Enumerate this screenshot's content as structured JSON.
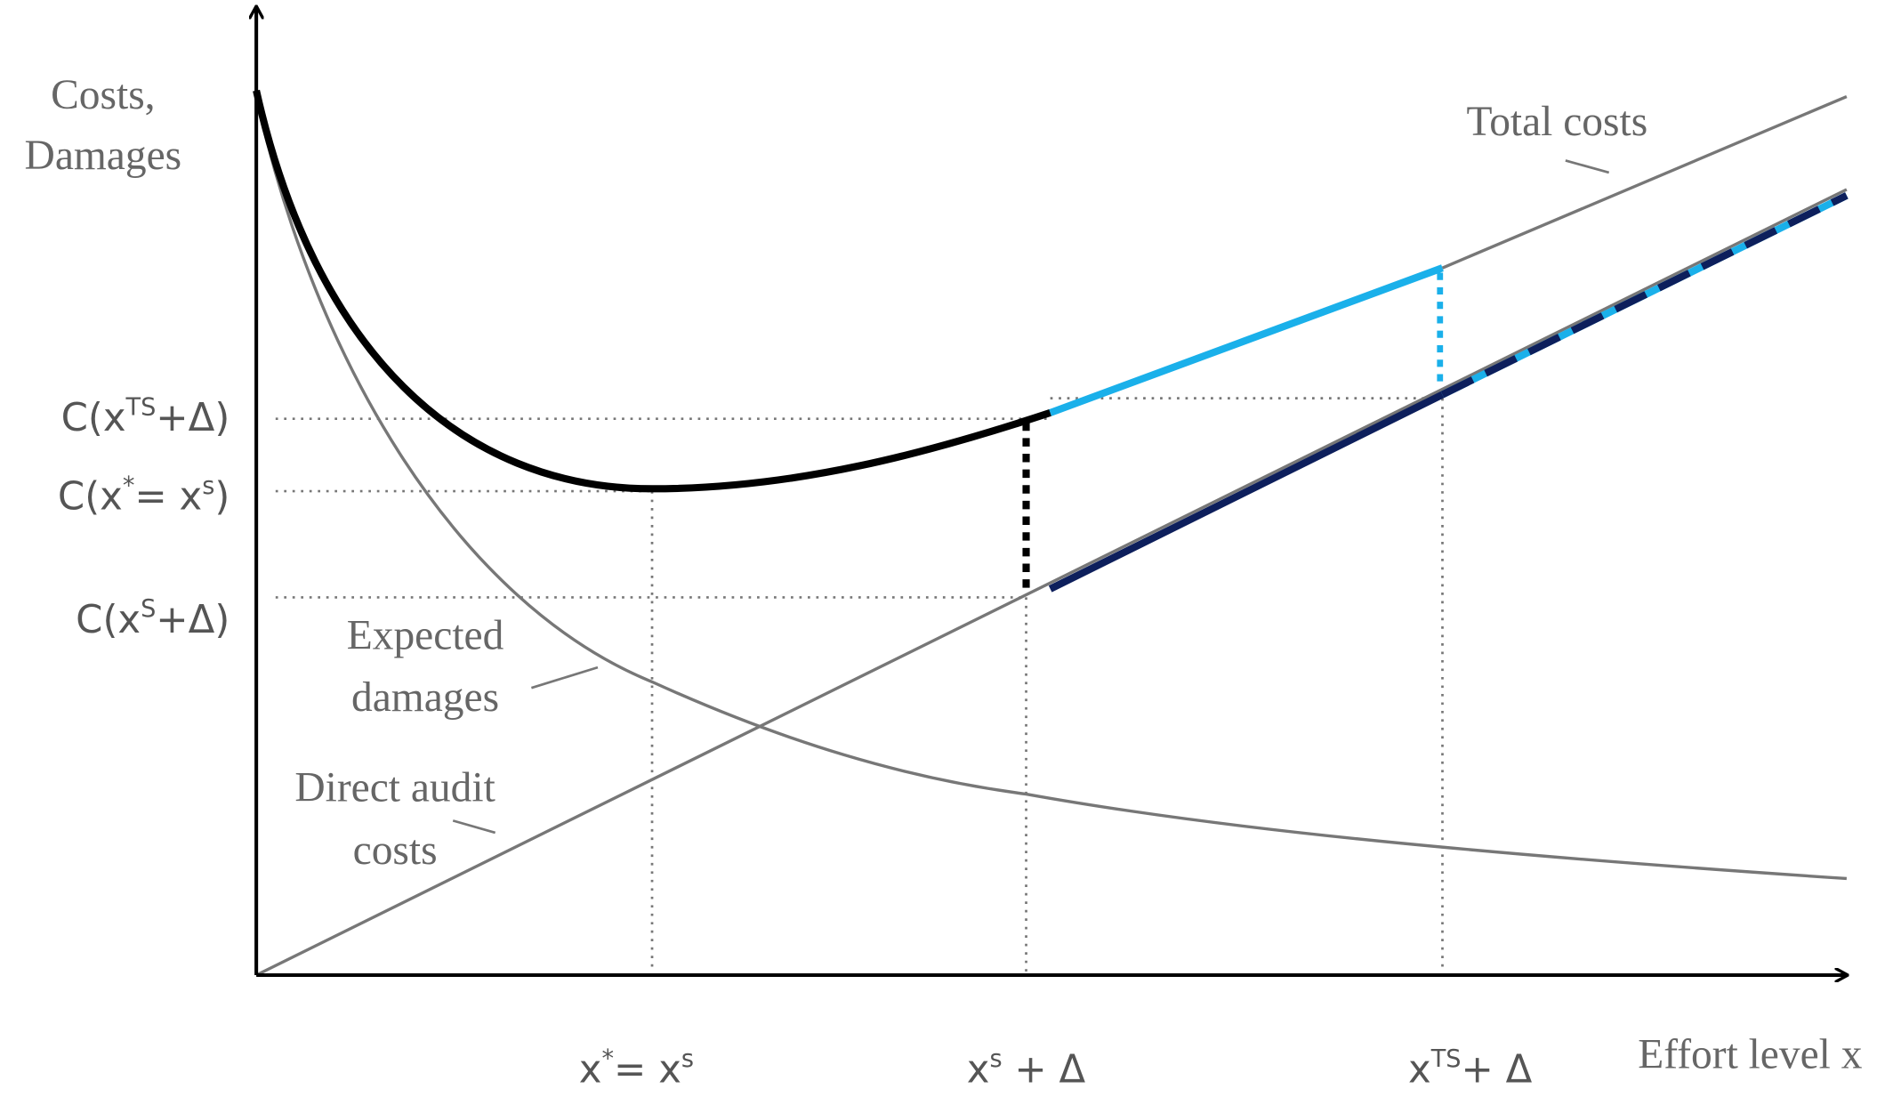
{
  "axes": {
    "y_label": [
      "Costs,",
      "Damages"
    ],
    "x_label": "Effort level x"
  },
  "curve_labels": {
    "total_costs": "Total costs",
    "expected_damages": [
      "Expected",
      "damages"
    ],
    "direct_audit_costs": [
      "Direct audit",
      "costs"
    ]
  },
  "y_labels": [
    [
      {
        "text": "C(x"
      },
      {
        "sup": "TS"
      },
      {
        "text": "+Δ)"
      }
    ],
    [
      {
        "text": "C(x"
      },
      {
        "sup": "*"
      },
      {
        "text": "= x"
      },
      {
        "sup": "s"
      },
      {
        "text": ")"
      }
    ],
    [
      {
        "text": "C(x"
      },
      {
        "sup": "S"
      },
      {
        "text": "+Δ)"
      }
    ]
  ],
  "x_labels": [
    [
      {
        "text": "x"
      },
      {
        "sup": "*"
      },
      {
        "text": "= x"
      },
      {
        "sup": "s"
      }
    ],
    [
      {
        "text": "x"
      },
      {
        "sup": "s"
      },
      {
        "text": " + Δ"
      }
    ],
    [
      {
        "text": "x"
      },
      {
        "sup": "TS"
      },
      {
        "text": "+ Δ"
      }
    ]
  ]
}
